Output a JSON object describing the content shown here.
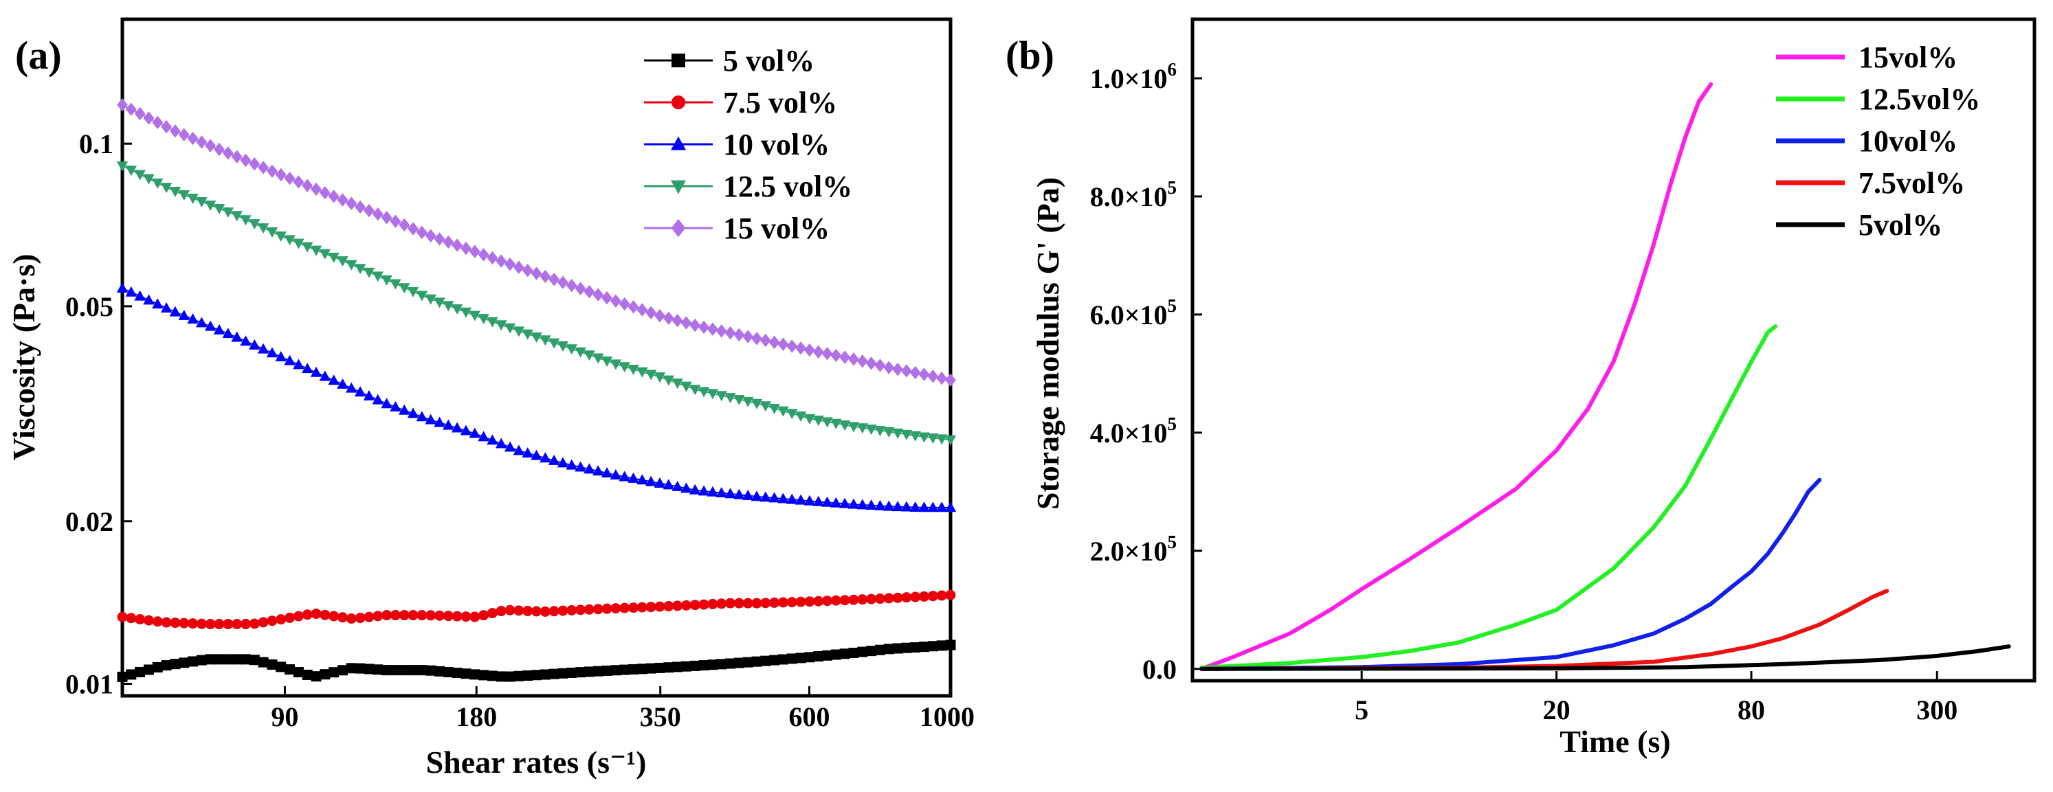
{
  "chart_data": [
    {
      "panel_label": "(a)",
      "type": "line",
      "xlabel": "Shear rates (s⁻¹)",
      "ylabel": "Viscosity (Pa·s)",
      "xscale": "log",
      "yscale": "log",
      "xlim": [
        50,
        1000
      ],
      "ylim": [
        0.0095,
        0.17
      ],
      "xticks": [
        90,
        180,
        350,
        600,
        1000
      ],
      "xtick_labels": [
        "90",
        "180",
        "350",
        "600",
        "1000"
      ],
      "yticks": [
        0.01,
        0.02,
        0.05,
        0.1
      ],
      "ytick_labels": [
        "0.01",
        "0.02",
        "0.05",
        "0.1"
      ],
      "legend_position": "top-right",
      "series": [
        {
          "name": "5 vol%",
          "color": "#000000",
          "marker": "square",
          "x": [
            50,
            58,
            68,
            80,
            90,
            100,
            115,
            130,
            150,
            180,
            200,
            230,
            260,
            300,
            350,
            400,
            450,
            500,
            600,
            700,
            800,
            900,
            1000
          ],
          "y": [
            0.0103,
            0.0108,
            0.0111,
            0.0111,
            0.0107,
            0.0103,
            0.0107,
            0.0106,
            0.0106,
            0.0104,
            0.0103,
            0.0104,
            0.0105,
            0.0106,
            0.0107,
            0.0108,
            0.0109,
            0.011,
            0.0112,
            0.0114,
            0.0116,
            0.0117,
            0.0118
          ]
        },
        {
          "name": "7.5 vol%",
          "color": "#e8000b",
          "marker": "circle",
          "x": [
            50,
            58,
            68,
            80,
            90,
            100,
            115,
            130,
            150,
            180,
            200,
            230,
            260,
            300,
            350,
            400,
            450,
            500,
            600,
            700,
            800,
            900,
            1000
          ],
          "y": [
            0.0133,
            0.013,
            0.0129,
            0.0129,
            0.0132,
            0.0135,
            0.0132,
            0.0134,
            0.0134,
            0.0133,
            0.0137,
            0.0136,
            0.0137,
            0.0138,
            0.0139,
            0.014,
            0.0141,
            0.0141,
            0.0142,
            0.0143,
            0.0144,
            0.0145,
            0.0146
          ]
        },
        {
          "name": "10 vol%",
          "color": "#0000ff",
          "marker": "triangle-up",
          "x": [
            50,
            60,
            75,
            90,
            110,
            130,
            150,
            180,
            210,
            250,
            300,
            350,
            400,
            500,
            600,
            700,
            800,
            900,
            1000
          ],
          "y": [
            0.054,
            0.049,
            0.044,
            0.04,
            0.036,
            0.033,
            0.031,
            0.029,
            0.027,
            0.0255,
            0.0243,
            0.0235,
            0.0228,
            0.0222,
            0.0218,
            0.0215,
            0.0213,
            0.0212,
            0.0212
          ]
        },
        {
          "name": "12.5 vol%",
          "color": "#2e9e6a",
          "marker": "triangle-down",
          "x": [
            50,
            60,
            75,
            90,
            110,
            130,
            150,
            180,
            210,
            250,
            300,
            350,
            400,
            500,
            600,
            700,
            800,
            900,
            1000
          ],
          "y": [
            0.091,
            0.082,
            0.074,
            0.067,
            0.061,
            0.056,
            0.052,
            0.048,
            0.045,
            0.042,
            0.039,
            0.037,
            0.035,
            0.033,
            0.031,
            0.03,
            0.0293,
            0.0287,
            0.0283
          ]
        },
        {
          "name": "15 vol%",
          "color": "#b070e8",
          "marker": "diamond",
          "x": [
            50,
            60,
            75,
            90,
            110,
            130,
            150,
            180,
            210,
            250,
            300,
            350,
            400,
            500,
            600,
            700,
            800,
            900,
            1000
          ],
          "y": [
            0.118,
            0.106,
            0.095,
            0.087,
            0.079,
            0.073,
            0.068,
            0.063,
            0.059,
            0.055,
            0.051,
            0.048,
            0.046,
            0.0435,
            0.0415,
            0.04,
            0.0385,
            0.0375,
            0.0365
          ]
        }
      ]
    },
    {
      "panel_label": "(b)",
      "type": "line",
      "xlabel": "Time (s)",
      "ylabel": "Storage modulus G' (Pa)",
      "xscale": "log",
      "yscale": "linear",
      "xlim": [
        1.5,
        600
      ],
      "ylim": [
        -20000,
        1100000
      ],
      "xticks": [
        5,
        20,
        80,
        300
      ],
      "xtick_labels": [
        "5",
        "20",
        "80",
        "300"
      ],
      "yticks": [
        0,
        200000,
        400000,
        600000,
        800000,
        1000000
      ],
      "ytick_labels": [
        {
          "base": "0.0",
          "exp": ""
        },
        {
          "base": "2.0×10",
          "exp": "5"
        },
        {
          "base": "4.0×10",
          "exp": "5"
        },
        {
          "base": "6.0×10",
          "exp": "5"
        },
        {
          "base": "8.0×10",
          "exp": "5"
        },
        {
          "base": "1.0×10",
          "exp": "6"
        }
      ],
      "legend_position": "top-right",
      "series": [
        {
          "name": "15vol%",
          "color": "#ff1ee8",
          "x": [
            1.6,
            2,
            3,
            4,
            5,
            7,
            10,
            15,
            20,
            25,
            30,
            35,
            40,
            45,
            50,
            55,
            60
          ],
          "y": [
            0,
            20000,
            60000,
            100000,
            135000,
            185000,
            240000,
            305000,
            370000,
            440000,
            520000,
            620000,
            720000,
            820000,
            900000,
            960000,
            990000
          ]
        },
        {
          "name": "12.5vol%",
          "color": "#22f022",
          "x": [
            1.6,
            3,
            5,
            7,
            10,
            15,
            20,
            30,
            40,
            50,
            60,
            70,
            80,
            90,
            95
          ],
          "y": [
            2000,
            10000,
            20000,
            30000,
            45000,
            75000,
            100000,
            170000,
            240000,
            310000,
            390000,
            460000,
            520000,
            570000,
            580000
          ]
        },
        {
          "name": "10vol%",
          "color": "#1020e8",
          "x": [
            1.6,
            5,
            10,
            20,
            30,
            40,
            50,
            60,
            70,
            80,
            90,
            100,
            110,
            120,
            130
          ],
          "y": [
            0,
            3000,
            8000,
            20000,
            40000,
            60000,
            85000,
            110000,
            140000,
            165000,
            195000,
            230000,
            265000,
            300000,
            320000
          ]
        },
        {
          "name": "7.5vol%",
          "color": "#ee1111",
          "x": [
            1.6,
            10,
            20,
            40,
            60,
            80,
            100,
            130,
            160,
            190,
            210
          ],
          "y": [
            0,
            2000,
            5000,
            12000,
            25000,
            38000,
            52000,
            75000,
            100000,
            122000,
            132000
          ]
        },
        {
          "name": "5vol%",
          "color": "#000000",
          "x": [
            1.6,
            20,
            50,
            100,
            200,
            300,
            400,
            500
          ],
          "y": [
            0,
            1000,
            3000,
            8000,
            15000,
            22000,
            30000,
            38000
          ]
        }
      ]
    }
  ]
}
